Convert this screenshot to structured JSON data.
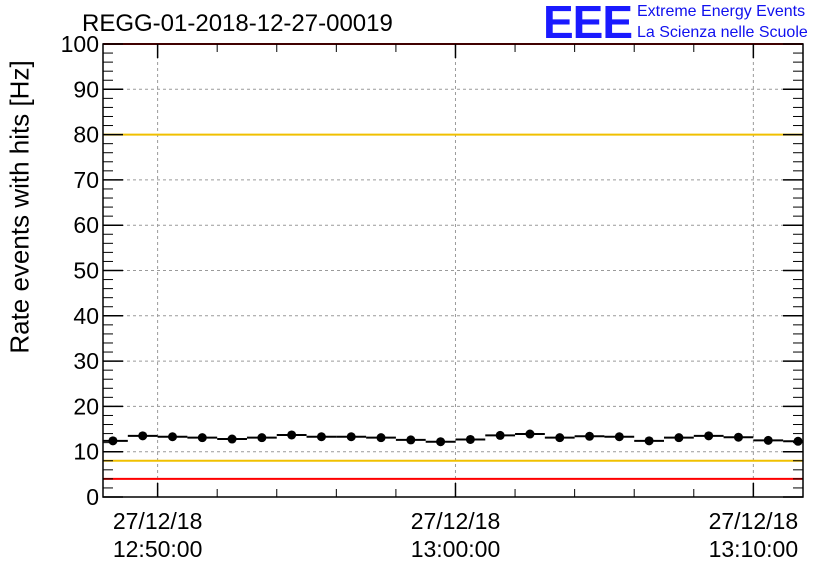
{
  "title": "REGG-01-2018-12-27-00019",
  "logo": {
    "letters": "EEE",
    "line1": "Extreme Energy Events",
    "line2": "La Scienza nelle Scuole"
  },
  "colors": {
    "red_threshold": "#ff0000",
    "yellow_threshold": "#f0c000",
    "data": "#000000",
    "grid": "#9a9a9a",
    "logo": "#1a1aff"
  },
  "chart_data": {
    "type": "scatter",
    "title": "REGG-01-2018-12-27-00019",
    "xlabel": "",
    "ylabel": "Rate events with hits [Hz]",
    "ylim": [
      0,
      100
    ],
    "xlim": [
      "2018-12-27 12:48:10",
      "2018-12-27 13:11:40"
    ],
    "grid": true,
    "yticks": [
      0,
      10,
      20,
      30,
      40,
      50,
      60,
      70,
      80,
      90,
      100
    ],
    "xticks": [
      {
        "time": "2018-12-27 12:50:00",
        "date": "27/12/18",
        "clock": "12:50:00"
      },
      {
        "time": "2018-12-27 13:00:00",
        "date": "27/12/18",
        "clock": "13:00:00"
      },
      {
        "time": "2018-12-27 13:10:00",
        "date": "27/12/18",
        "clock": "13:10:00"
      }
    ],
    "reference_lines": [
      {
        "y": 100,
        "color": "#ff0000"
      },
      {
        "y": 80,
        "color": "#f0c000"
      },
      {
        "y": 8,
        "color": "#f0c000"
      },
      {
        "y": 4,
        "color": "#ff0000"
      }
    ],
    "series": [
      {
        "x": [
          "12:48:30",
          "12:49:30",
          "12:50:30",
          "12:51:30",
          "12:52:30",
          "12:53:30",
          "12:54:30",
          "12:55:30",
          "12:56:30",
          "12:57:30",
          "12:58:30",
          "12:59:30",
          "13:00:30",
          "13:01:30",
          "13:02:30",
          "13:03:30",
          "13:04:30",
          "13:05:30",
          "13:06:30",
          "13:07:30",
          "13:08:30",
          "13:09:30",
          "13:10:30",
          "13:11:30"
        ],
        "y": [
          12.4,
          13.5,
          13.3,
          13.1,
          12.8,
          13.1,
          13.7,
          13.3,
          13.3,
          13.1,
          12.6,
          12.2,
          12.7,
          13.6,
          13.9,
          13.1,
          13.4,
          13.3,
          12.4,
          13.1,
          13.5,
          13.2,
          12.5,
          12.3
        ],
        "xerr_seconds": 30
      }
    ]
  }
}
